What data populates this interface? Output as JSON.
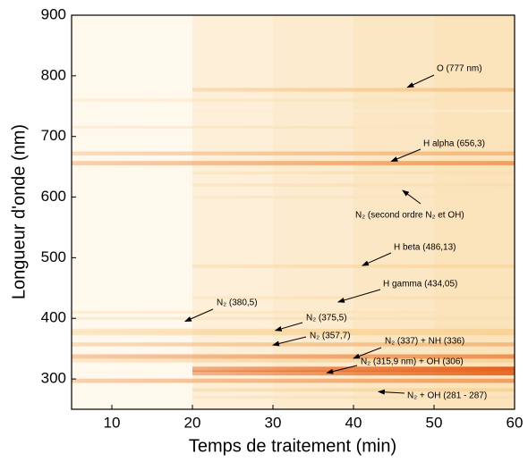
{
  "chart_data": {
    "type": "heatmap",
    "x_label": "Temps de traitement (min)",
    "y_label": "Longueur d'onde (nm)",
    "xlim": [
      5,
      60
    ],
    "ylim": [
      250,
      900
    ],
    "xticks": [
      10,
      20,
      30,
      40,
      50,
      60
    ],
    "yticks": [
      300,
      400,
      500,
      600,
      700,
      800,
      900
    ],
    "colors": [
      "#fffaf0",
      "#f8d49a",
      "#e4520c"
    ],
    "background": [
      {
        "x0": 5,
        "x1": 20,
        "intensity": 0.02
      },
      {
        "x0": 20,
        "x1": 30,
        "intensity": 0.14
      },
      {
        "x0": 30,
        "x1": 40,
        "intensity": 0.2
      },
      {
        "x0": 40,
        "x1": 50,
        "intensity": 0.25
      },
      {
        "x0": 50,
        "x1": 60,
        "intensity": 0.3
      }
    ],
    "bands": [
      {
        "wavelength": 777,
        "intensity": 0.55,
        "onset": 20
      },
      {
        "wavelength": 760,
        "intensity": 0.3,
        "onset": 5
      },
      {
        "wavelength": 742,
        "intensity": 0.2,
        "onset": 20
      },
      {
        "wavelength": 715,
        "intensity": 0.3,
        "onset": 5
      },
      {
        "wavelength": 672,
        "intensity": 0.6,
        "onset": 5
      },
      {
        "wavelength": 656,
        "intensity": 0.7,
        "onset": 5
      },
      {
        "wavelength": 640,
        "intensity": 0.35,
        "onset": 20
      },
      {
        "wavelength": 620,
        "intensity": 0.35,
        "onset": 20
      },
      {
        "wavelength": 600,
        "intensity": 0.3,
        "onset": 20
      },
      {
        "wavelength": 486,
        "intensity": 0.45,
        "onset": 20
      },
      {
        "wavelength": 434,
        "intensity": 0.35,
        "onset": 20
      },
      {
        "wavelength": 410,
        "intensity": 0.3,
        "onset": 5
      },
      {
        "wavelength": 400,
        "intensity": 0.35,
        "onset": 5
      },
      {
        "wavelength": 380,
        "intensity": 0.5,
        "onset": 5
      },
      {
        "wavelength": 375,
        "intensity": 0.5,
        "onset": 5
      },
      {
        "wavelength": 357,
        "intensity": 0.6,
        "onset": 5
      },
      {
        "wavelength": 337,
        "intensity": 0.75,
        "onset": 5
      },
      {
        "wavelength": 330,
        "intensity": 0.5,
        "onset": 5
      },
      {
        "wavelength": 316,
        "intensity": 0.95,
        "onset": 20
      },
      {
        "wavelength": 310,
        "intensity": 0.9,
        "onset": 20
      },
      {
        "wavelength": 297,
        "intensity": 0.7,
        "onset": 5
      },
      {
        "wavelength": 282,
        "intensity": 0.5,
        "onset": 20
      },
      {
        "wavelength": 270,
        "intensity": 0.35,
        "onset": 20
      }
    ],
    "annotations": [
      {
        "text": "O (777 nm)",
        "x": 46.7,
        "y": 781
      },
      {
        "text": "H alpha (656,3)",
        "x": 44.7,
        "y": 659
      },
      {
        "text": "N₂ (second ordre N₂ et OH)",
        "x": 46.1,
        "y": 611
      },
      {
        "text": "H beta (486,13)",
        "x": 41.1,
        "y": 487
      },
      {
        "text": "H gamma (434,05)",
        "x": 38.1,
        "y": 427
      },
      {
        "text": "N₂ (380,5)",
        "x": 19.1,
        "y": 395
      },
      {
        "text": "N₂ (375,5)",
        "x": 30.3,
        "y": 380
      },
      {
        "text": "N₂ (357,7)",
        "x": 30,
        "y": 356
      },
      {
        "text": "N₂ (337) + NH (336)",
        "x": 40,
        "y": 334
      },
      {
        "text": "N₂ (315,9 nm) + OH (306)",
        "x": 36.7,
        "y": 310
      },
      {
        "text": "N₂ + OH (281 - 287)",
        "x": 43.1,
        "y": 279
      }
    ]
  }
}
